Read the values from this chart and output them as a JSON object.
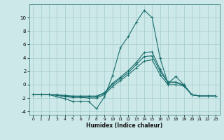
{
  "title": "",
  "xlabel": "Humidex (Indice chaleur)",
  "xlim": [
    -0.5,
    23.5
  ],
  "ylim": [
    -4.5,
    12
  ],
  "yticks": [
    -4,
    -2,
    0,
    2,
    4,
    6,
    8,
    10
  ],
  "xticks": [
    0,
    1,
    2,
    3,
    4,
    5,
    6,
    7,
    8,
    9,
    10,
    11,
    12,
    13,
    14,
    15,
    16,
    17,
    18,
    19,
    20,
    21,
    22,
    23
  ],
  "bg_color": "#cce8e8",
  "grid_color": "#aacfcf",
  "line_color": "#1a6e6e",
  "lines": [
    {
      "x": [
        0,
        1,
        2,
        3,
        4,
        5,
        6,
        7,
        8,
        9,
        10,
        11,
        12,
        13,
        14,
        15,
        16,
        17,
        18,
        19,
        20,
        21,
        22,
        23
      ],
      "y": [
        -1.5,
        -1.5,
        -1.5,
        -1.8,
        -2.1,
        -2.5,
        -2.5,
        -2.5,
        -3.6,
        -1.8,
        1.3,
        5.5,
        7.2,
        9.3,
        11.1,
        10.0,
        4.0,
        0.2,
        1.2,
        0.0,
        -1.5,
        -1.7,
        -1.7,
        -1.7
      ]
    },
    {
      "x": [
        0,
        1,
        2,
        3,
        4,
        5,
        6,
        7,
        8,
        9,
        10,
        11,
        12,
        13,
        14,
        15,
        16,
        17,
        18,
        19,
        20,
        21,
        22,
        23
      ],
      "y": [
        -1.5,
        -1.5,
        -1.5,
        -1.6,
        -1.8,
        -1.9,
        -1.9,
        -2.0,
        -2.0,
        -1.5,
        -0.3,
        0.6,
        1.5,
        2.5,
        3.5,
        3.7,
        1.5,
        0.0,
        0.0,
        -0.2,
        -1.5,
        -1.7,
        -1.7,
        -1.7
      ]
    },
    {
      "x": [
        0,
        1,
        2,
        3,
        4,
        5,
        6,
        7,
        8,
        9,
        10,
        11,
        12,
        13,
        14,
        15,
        16,
        17,
        18,
        19,
        20,
        21,
        22,
        23
      ],
      "y": [
        -1.5,
        -1.5,
        -1.5,
        -1.5,
        -1.7,
        -1.8,
        -1.8,
        -1.8,
        -1.8,
        -1.3,
        0.0,
        0.9,
        1.8,
        3.0,
        4.2,
        4.3,
        2.0,
        0.3,
        0.3,
        -0.1,
        -1.5,
        -1.7,
        -1.7,
        -1.7
      ]
    },
    {
      "x": [
        0,
        1,
        2,
        3,
        4,
        5,
        6,
        7,
        8,
        9,
        10,
        11,
        12,
        13,
        14,
        15,
        16,
        17,
        18,
        19,
        20,
        21,
        22,
        23
      ],
      "y": [
        -1.5,
        -1.5,
        -1.5,
        -1.5,
        -1.6,
        -1.7,
        -1.7,
        -1.7,
        -1.7,
        -1.2,
        0.2,
        1.1,
        2.1,
        3.3,
        4.8,
        4.9,
        2.3,
        0.4,
        0.4,
        -0.05,
        -1.5,
        -1.7,
        -1.7,
        -1.7
      ]
    }
  ]
}
